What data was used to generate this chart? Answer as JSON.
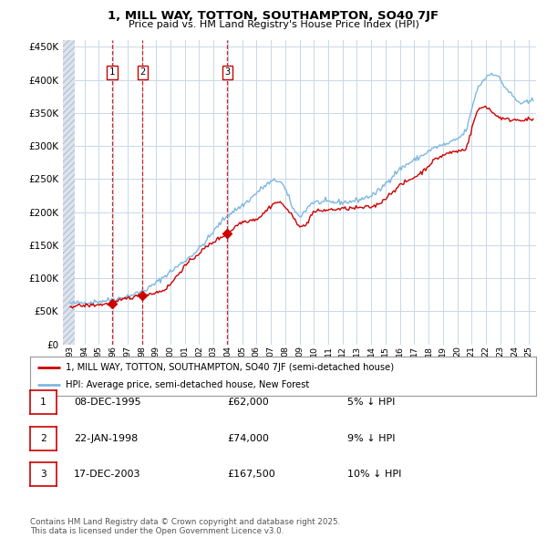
{
  "title": "1, MILL WAY, TOTTON, SOUTHAMPTON, SO40 7JF",
  "subtitle": "Price paid vs. HM Land Registry's House Price Index (HPI)",
  "legend_line1": "1, MILL WAY, TOTTON, SOUTHAMPTON, SO40 7JF (semi-detached house)",
  "legend_line2": "HPI: Average price, semi-detached house, New Forest",
  "transactions": [
    {
      "num": 1,
      "date": "08-DEC-1995",
      "price": 62000,
      "pct": "5%",
      "dir": "↓",
      "x_year": 1995.92
    },
    {
      "num": 2,
      "date": "22-JAN-1998",
      "price": 74000,
      "pct": "9%",
      "dir": "↓",
      "x_year": 1998.06
    },
    {
      "num": 3,
      "date": "17-DEC-2003",
      "price": 167500,
      "pct": "10%",
      "dir": "↓",
      "x_year": 2003.96
    }
  ],
  "ylim": [
    0,
    460000
  ],
  "yticks": [
    0,
    50000,
    100000,
    150000,
    200000,
    250000,
    300000,
    350000,
    400000,
    450000
  ],
  "hpi_color": "#7eb8e0",
  "price_color": "#cc0000",
  "marker_color": "#cc0000",
  "dashed_color": "#cc0000",
  "grid_color": "#c8d8e8",
  "bg_color": "#ffffff",
  "footer": "Contains HM Land Registry data © Crown copyright and database right 2025.\nThis data is licensed under the Open Government Licence v3.0.",
  "xlim_left": 1992.5,
  "xlim_right": 2025.5,
  "hpi_anchors": [
    [
      1993.0,
      62000
    ],
    [
      1995.0,
      65000
    ],
    [
      1996.0,
      68000
    ],
    [
      1998.0,
      80000
    ],
    [
      2000.0,
      110000
    ],
    [
      2002.0,
      145000
    ],
    [
      2004.0,
      195000
    ],
    [
      2005.0,
      210000
    ],
    [
      2007.5,
      248000
    ],
    [
      2009.0,
      195000
    ],
    [
      2010.0,
      215000
    ],
    [
      2012.0,
      215000
    ],
    [
      2014.0,
      225000
    ],
    [
      2016.0,
      265000
    ],
    [
      2017.5,
      285000
    ],
    [
      2018.5,
      298000
    ],
    [
      2019.5,
      305000
    ],
    [
      2020.5,
      320000
    ],
    [
      2021.5,
      390000
    ],
    [
      2022.5,
      410000
    ],
    [
      2023.5,
      385000
    ],
    [
      2024.5,
      365000
    ],
    [
      2025.3,
      370000
    ]
  ],
  "price_anchors": [
    [
      1993.0,
      58000
    ],
    [
      1995.0,
      60000
    ],
    [
      1995.92,
      62000
    ],
    [
      1997.0,
      70000
    ],
    [
      1998.06,
      74000
    ],
    [
      1999.5,
      82000
    ],
    [
      2001.0,
      118000
    ],
    [
      2003.0,
      155000
    ],
    [
      2003.96,
      167500
    ],
    [
      2005.0,
      185000
    ],
    [
      2006.0,
      190000
    ],
    [
      2007.5,
      215000
    ],
    [
      2009.3,
      178000
    ],
    [
      2010.0,
      200000
    ],
    [
      2012.0,
      205000
    ],
    [
      2014.0,
      208000
    ],
    [
      2016.0,
      240000
    ],
    [
      2017.5,
      260000
    ],
    [
      2018.5,
      280000
    ],
    [
      2019.5,
      290000
    ],
    [
      2020.5,
      295000
    ],
    [
      2021.5,
      355000
    ],
    [
      2022.0,
      360000
    ],
    [
      2022.5,
      350000
    ],
    [
      2023.5,
      340000
    ],
    [
      2024.5,
      340000
    ],
    [
      2025.3,
      340000
    ]
  ]
}
